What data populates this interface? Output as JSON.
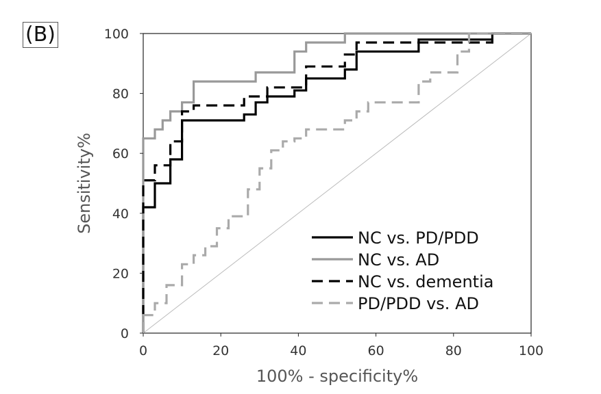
{
  "panel_label": "(B)",
  "chart_data": {
    "type": "line",
    "xlabel": "100% - specificity%",
    "ylabel": "Sensitivity%",
    "xlim": [
      0,
      100
    ],
    "ylim": [
      0,
      100
    ],
    "x_ticks": [
      "0",
      "20",
      "40",
      "60",
      "80",
      "100"
    ],
    "y_ticks": [
      "0",
      "20",
      "40",
      "60",
      "80",
      "100"
    ],
    "grid": false,
    "legend_position": "bottom-right",
    "reference_line": {
      "x": [
        0,
        100
      ],
      "y": [
        0,
        100
      ],
      "color": "#bbbbbb"
    },
    "series": [
      {
        "name": "NC vs. PD/PDD",
        "color": "#000000",
        "dash": "solid",
        "x": [
          0,
          0,
          3,
          3,
          7,
          7,
          10,
          10,
          26,
          26,
          29,
          29,
          32,
          32,
          39,
          39,
          42,
          42,
          52,
          52,
          55,
          55,
          71,
          71,
          90,
          90,
          100
        ],
        "y": [
          0,
          42,
          42,
          50,
          50,
          58,
          58,
          71,
          71,
          73,
          73,
          77,
          77,
          79,
          79,
          81,
          81,
          85,
          85,
          88,
          88,
          94,
          94,
          98,
          98,
          100,
          100
        ]
      },
      {
        "name": "NC vs. AD",
        "color": "#999999",
        "dash": "solid",
        "x": [
          0,
          0,
          3,
          3,
          5,
          5,
          7,
          7,
          10,
          10,
          13,
          13,
          29,
          29,
          39,
          39,
          42,
          42,
          52,
          52,
          100
        ],
        "y": [
          0,
          65,
          65,
          68,
          68,
          71,
          71,
          74,
          74,
          77,
          77,
          84,
          84,
          87,
          87,
          94,
          94,
          97,
          97,
          100,
          100
        ]
      },
      {
        "name": "NC vs. dementia",
        "color": "#000000",
        "dash": "dashed",
        "x": [
          0,
          0,
          3,
          3,
          7,
          7,
          10,
          10,
          13,
          13,
          26,
          26,
          32,
          32,
          42,
          42,
          52,
          52,
          55,
          55,
          90,
          90,
          100
        ],
        "y": [
          0,
          51,
          51,
          56,
          56,
          64,
          64,
          74,
          74,
          76,
          76,
          79,
          79,
          82,
          82,
          89,
          89,
          93,
          93,
          97,
          97,
          100,
          100
        ]
      },
      {
        "name": "PD/PDD vs. AD",
        "color": "#aaaaaa",
        "dash": "dashed",
        "x": [
          0,
          0,
          3,
          3,
          6,
          6,
          10,
          10,
          13,
          13,
          16,
          16,
          19,
          19,
          22,
          22,
          27,
          27,
          30,
          30,
          33,
          33,
          36,
          36,
          39,
          39,
          42,
          42,
          52,
          52,
          55,
          55,
          58,
          58,
          71,
          71,
          74,
          74,
          81,
          81,
          84,
          84,
          100
        ],
        "y": [
          0,
          6,
          6,
          10,
          10,
          16,
          16,
          23,
          23,
          26,
          26,
          29,
          29,
          35,
          35,
          39,
          39,
          48,
          48,
          55,
          55,
          61,
          61,
          64,
          64,
          65,
          65,
          68,
          68,
          71,
          71,
          74,
          74,
          77,
          77,
          84,
          84,
          87,
          87,
          94,
          94,
          100,
          100
        ]
      }
    ]
  }
}
